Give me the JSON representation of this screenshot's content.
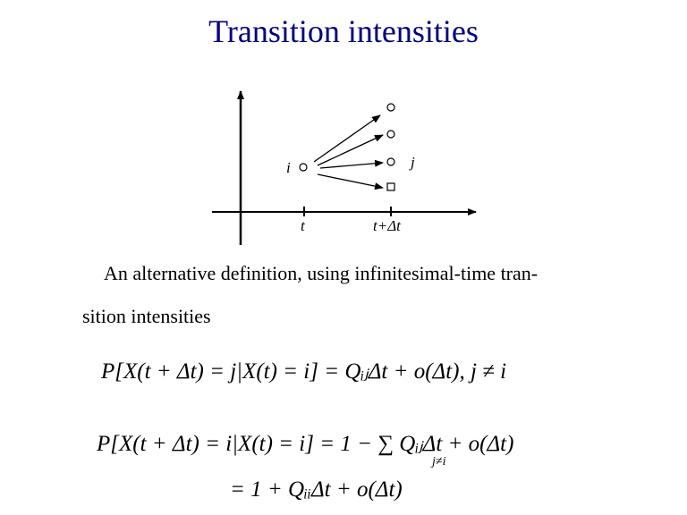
{
  "title": "Transition intensities",
  "diagram": {
    "source_label": "i",
    "target_label": "j",
    "tick_labels": [
      "t",
      "t+Δt"
    ]
  },
  "paragraph": {
    "line1": "An alternative definition, using infinitesimal-time tran-",
    "line2": "sition intensities"
  },
  "equations": {
    "eq1": "P[X(t + Δt) = j|X(t) = i] = QᵢⱼΔt + o(Δt),  j ≠ i",
    "eq2": "P[X(t + Δt)  =  i|X(t) = i] = 1 − ∑ QᵢⱼΔt + o(Δt)",
    "eq2_sum_index": "j≠i",
    "eq3": "=  1 + QᵢᵢΔt + o(Δt)"
  }
}
